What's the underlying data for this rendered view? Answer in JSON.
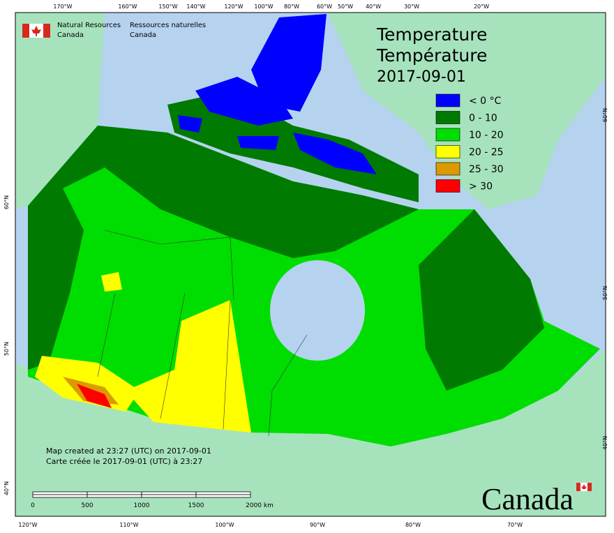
{
  "agency_en": [
    "Natural Resources",
    "Canada"
  ],
  "agency_fr": [
    "Ressources naturelles",
    "Canada"
  ],
  "title": [
    "Temperature",
    "Température",
    "2017-09-01"
  ],
  "legend": [
    {
      "label": "< 0 °C",
      "color": "#0000ff"
    },
    {
      "label": "0 - 10",
      "color": "#007a00"
    },
    {
      "label": "10 - 20",
      "color": "#00dd00"
    },
    {
      "label": "20 - 25",
      "color": "#ffff00"
    },
    {
      "label": "25 - 30",
      "color": "#dd9900"
    },
    {
      "label": "> 30",
      "color": "#ff0000"
    }
  ],
  "graticule": {
    "top": [
      "170°W",
      "160°W",
      "150°W",
      "140°W",
      "120°W",
      "100°W",
      "80°W",
      "60°W",
      "50°W",
      "40°W",
      "30°W",
      "20°W"
    ],
    "bottom": [
      "120°W",
      "110°W",
      "100°W",
      "90°W",
      "80°W",
      "70°W"
    ],
    "left": [
      "60°N",
      "50°N",
      "40°N"
    ],
    "right": [
      "60°N",
      "50°N",
      "40°N"
    ]
  },
  "notes": [
    "Map created at 23:27 (UTC) on 2017-09-01",
    "Carte créée le 2017-09-01 (UTC) à 23:27"
  ],
  "scale_bar": [
    "0",
    "500",
    "1000",
    "1500",
    "2000 km"
  ],
  "wordmark": "Canada"
}
